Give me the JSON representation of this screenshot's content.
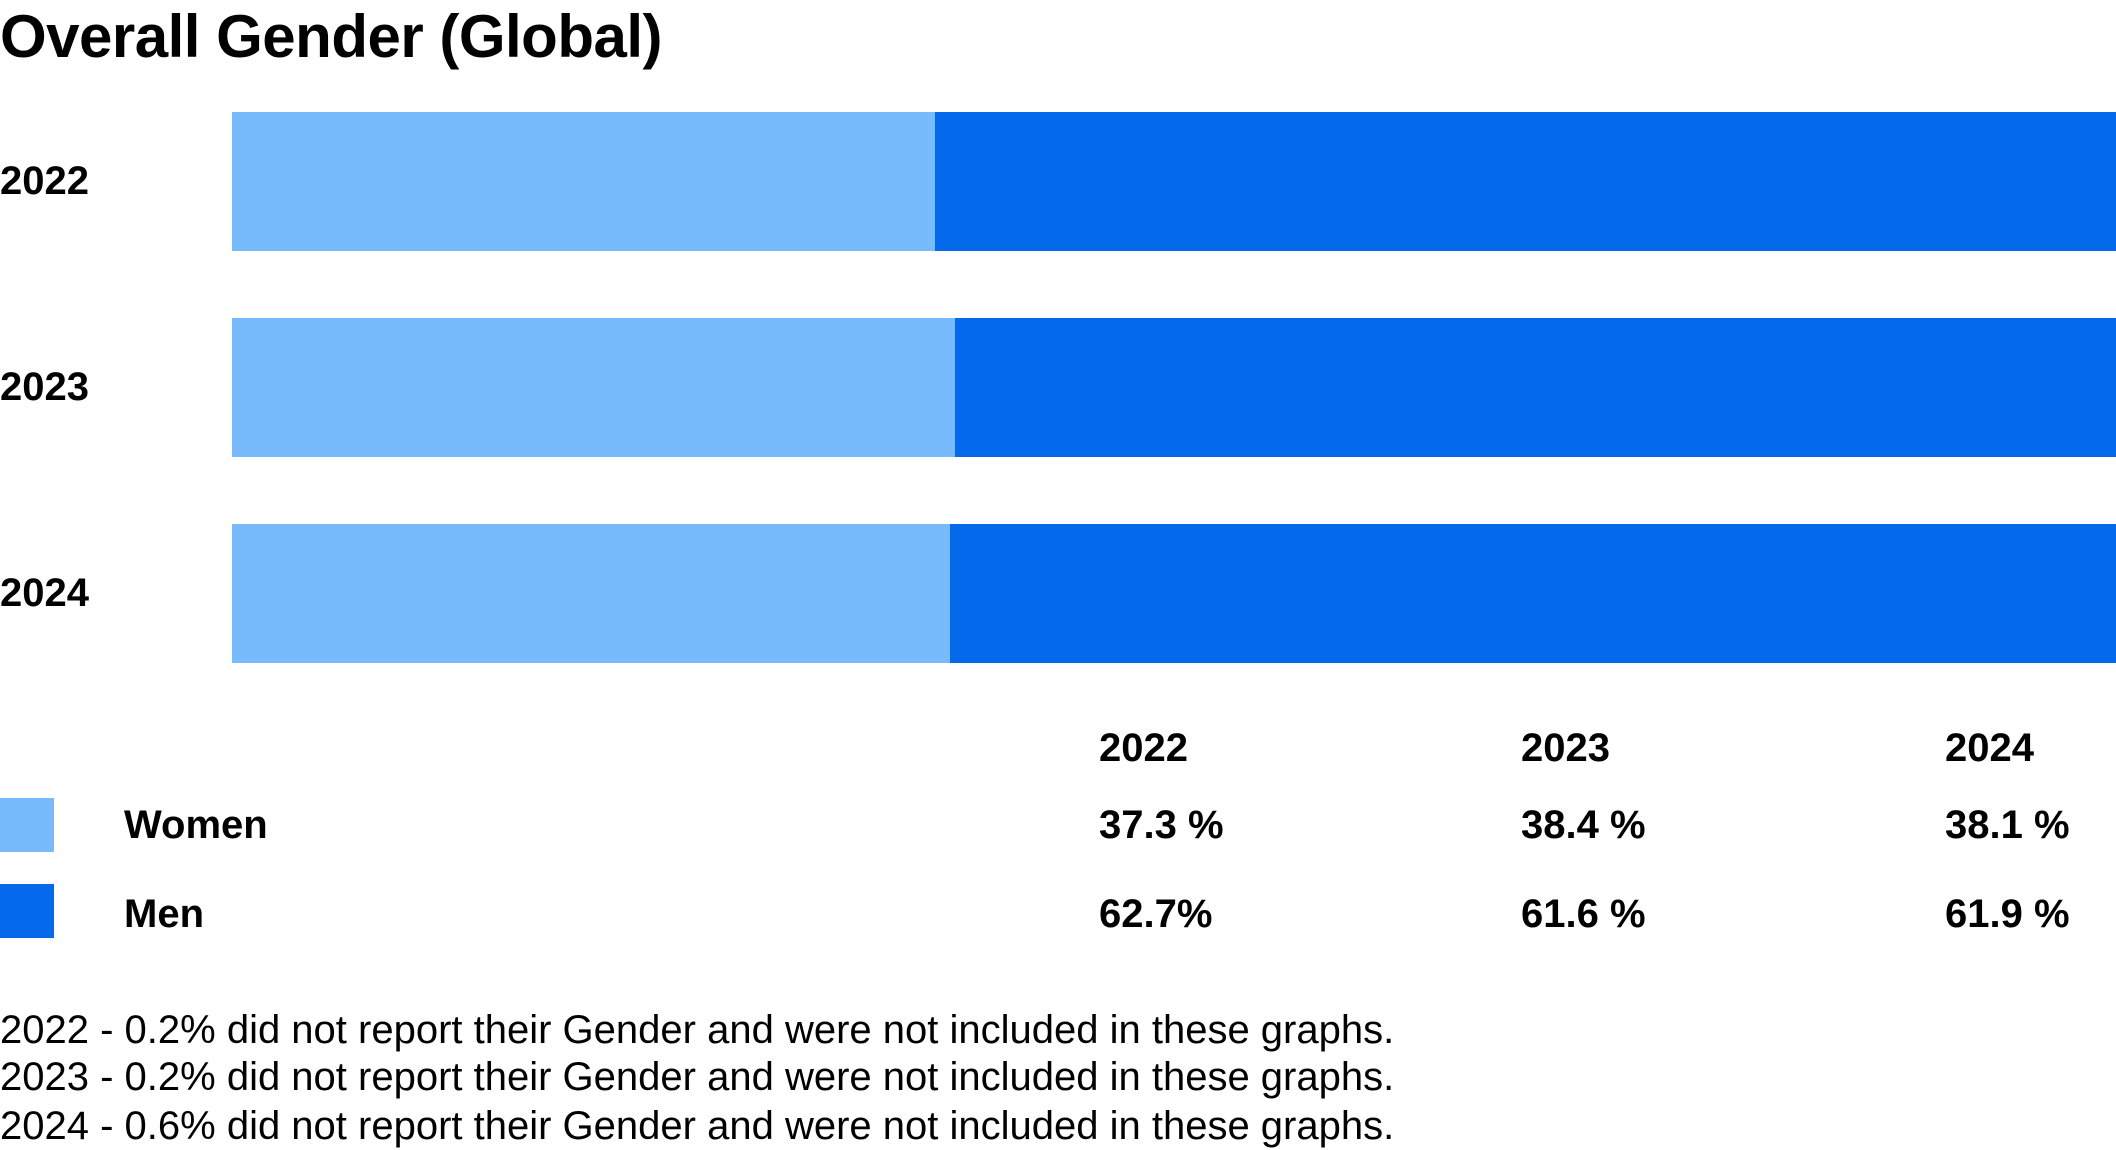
{
  "chart_data": {
    "type": "bar",
    "orientation": "horizontal",
    "stacked": true,
    "title": "Overall Gender (Global)",
    "categories": [
      "2022",
      "2023",
      "2024"
    ],
    "series": [
      {
        "name": "Women",
        "values": [
          37.3,
          38.4,
          38.1
        ],
        "labels": [
          "37.3 %",
          "38.4 %",
          "38.1 %"
        ],
        "color": "#78BBFD"
      },
      {
        "name": "Men",
        "values": [
          62.7,
          61.6,
          61.9
        ],
        "labels": [
          "62.7%",
          "61.6 %",
          "61.9 %"
        ],
        "color": "#0469EB"
      }
    ],
    "xlim": [
      0,
      100
    ],
    "grid": false,
    "legend": "bottom-left",
    "table_headers": [
      "2022",
      "2023",
      "2024"
    ],
    "notes": [
      "2022 - 0.2% did not report their Gender and were not included in these graphs.",
      "2023 - 0.2% did not report their Gender and were not included in these graphs.",
      "2024 - 0.6% did not report their Gender and were not included in these graphs."
    ]
  }
}
